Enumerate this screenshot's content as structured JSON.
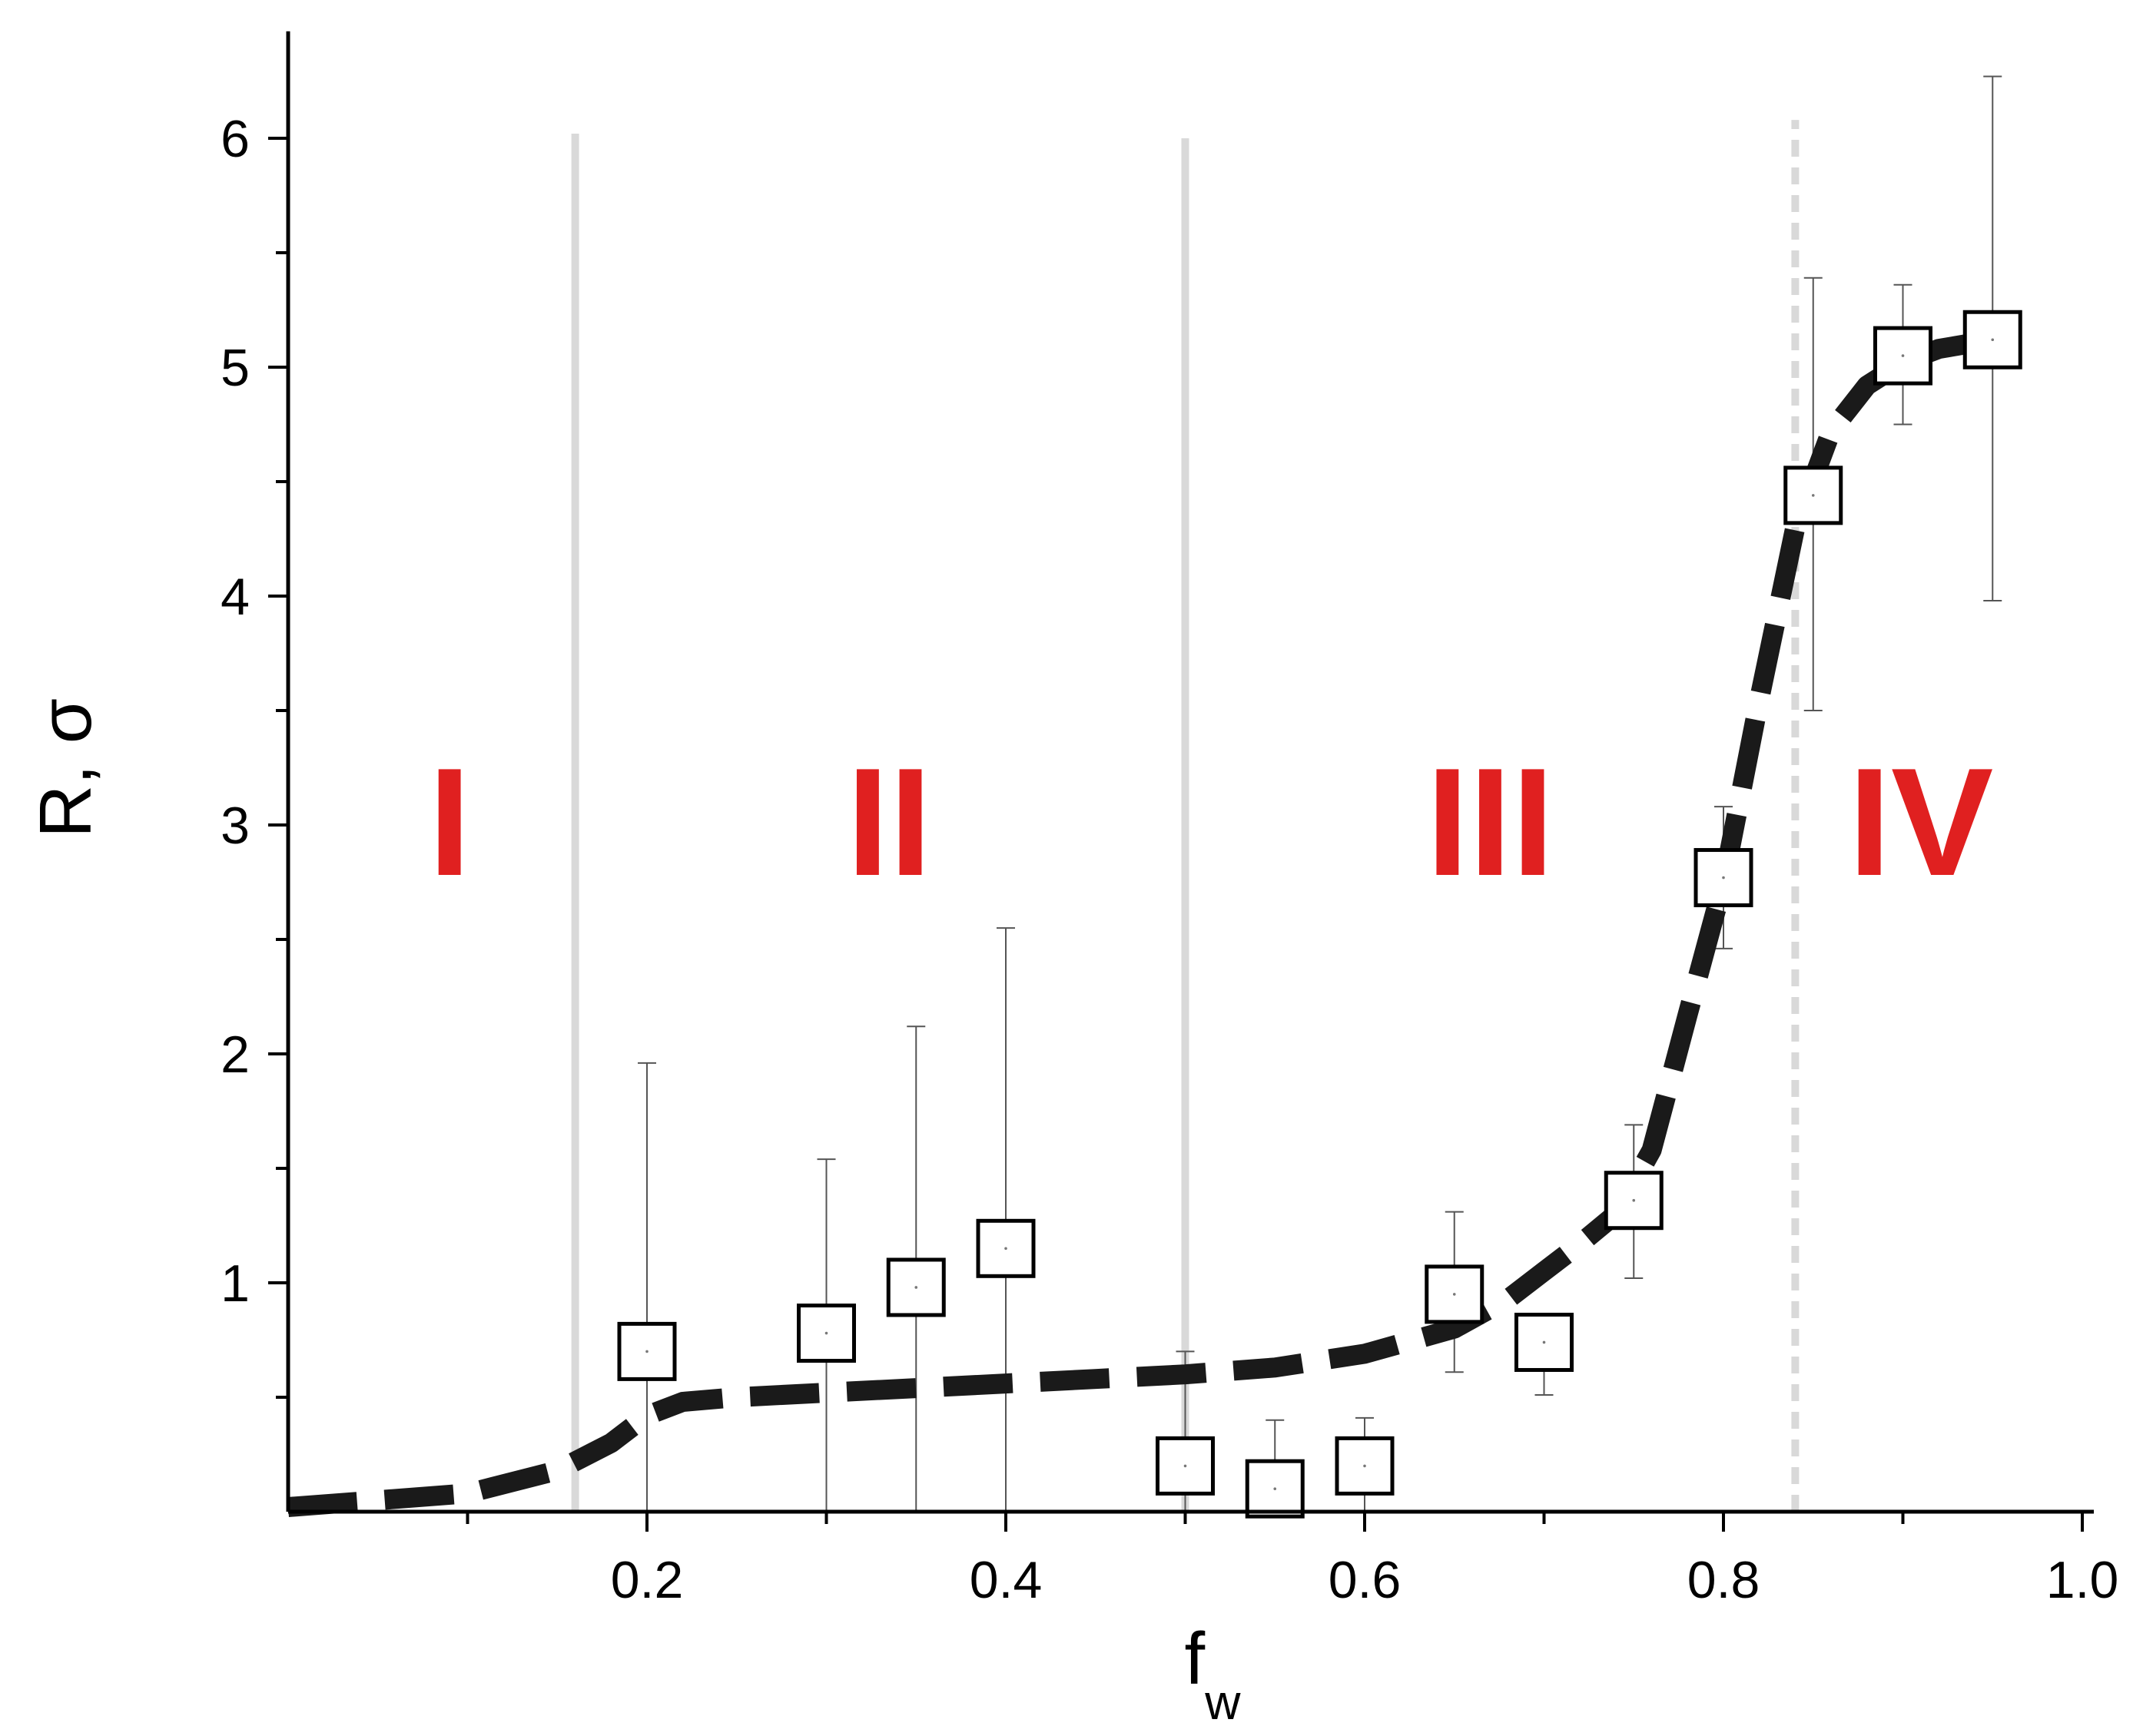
{
  "chart_data": {
    "type": "scatter",
    "title": "",
    "xlabel_main": "f",
    "xlabel_sub": "w",
    "ylabel": "R, σ",
    "xlim": [
      0.0,
      1.0
    ],
    "ylim": [
      0.0,
      6.4
    ],
    "x_ticks": [
      0.2,
      0.4,
      0.6,
      0.8,
      1.0
    ],
    "x_tick_labels": [
      "0.2",
      "0.4",
      "0.6",
      "0.8",
      "1.0"
    ],
    "y_ticks": [
      1,
      2,
      3,
      4,
      5,
      6
    ],
    "y_tick_labels": [
      "1",
      "2",
      "3",
      "4",
      "5",
      "6"
    ],
    "grid": false,
    "series": [
      {
        "marker": "open-square",
        "x": [
          0.2,
          0.3,
          0.35,
          0.4,
          0.5,
          0.55,
          0.6,
          0.65,
          0.7,
          0.75,
          0.8,
          0.85,
          0.9,
          0.95
        ],
        "y": [
          0.7,
          0.78,
          0.98,
          1.15,
          0.2,
          0.1,
          0.2,
          0.95,
          0.74,
          1.36,
          2.77,
          4.44,
          5.05,
          5.12
        ],
        "err_low": [
          0.0,
          0.0,
          0.0,
          0.0,
          0.0,
          0.0,
          0.0,
          0.61,
          0.51,
          1.02,
          2.46,
          3.5,
          4.75,
          3.98
        ],
        "err_high": [
          1.96,
          1.54,
          2.12,
          2.55,
          0.7,
          0.4,
          0.41,
          1.31,
          0.74,
          1.69,
          3.08,
          5.39,
          5.36,
          6.27
        ]
      }
    ],
    "fit_curve": {
      "style": "dashed-thick",
      "color": "#1a1a1a",
      "x": [
        0.0,
        0.1,
        0.15,
        0.18,
        0.2,
        0.22,
        0.25,
        0.3,
        0.35,
        0.4,
        0.45,
        0.5,
        0.55,
        0.6,
        0.65,
        0.68,
        0.7,
        0.72,
        0.74,
        0.76,
        0.78,
        0.8,
        0.82,
        0.84,
        0.86,
        0.88,
        0.9,
        0.92,
        0.95
      ],
      "y": [
        0.02,
        0.08,
        0.18,
        0.3,
        0.42,
        0.48,
        0.5,
        0.52,
        0.54,
        0.56,
        0.58,
        0.6,
        0.63,
        0.69,
        0.8,
        0.93,
        1.05,
        1.17,
        1.3,
        1.58,
        2.17,
        2.75,
        3.55,
        4.3,
        4.72,
        4.92,
        5.02,
        5.08,
        5.12
      ]
    },
    "region_dividers": [
      {
        "x": 0.16,
        "style": "solid",
        "ymax": 6.02
      },
      {
        "x": 0.5,
        "style": "solid",
        "ymax": 6.0
      },
      {
        "x": 0.84,
        "style": "dashed",
        "ymax": 6.08
      }
    ],
    "region_labels": [
      {
        "text": "I",
        "x": 0.09,
        "y": 3.0
      },
      {
        "text": "II",
        "x": 0.335,
        "y": 3.0
      },
      {
        "text": "III",
        "x": 0.67,
        "y": 3.0
      },
      {
        "text": "IV",
        "x": 0.91,
        "y": 3.0
      }
    ],
    "colors": {
      "axis": "#000000",
      "divider": "#d9d9d9",
      "region_label": "#e02020",
      "marker_edge": "#000000",
      "marker_fill": "#ffffff",
      "errorbar": "#555555"
    }
  }
}
